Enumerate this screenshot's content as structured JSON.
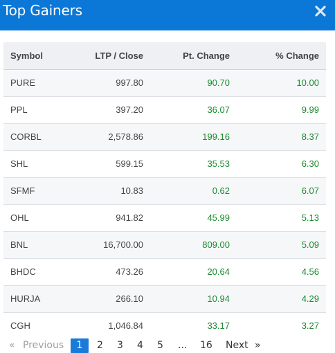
{
  "header": {
    "title": "Top Gainers"
  },
  "table": {
    "columns": [
      "Symbol",
      "LTP / Close",
      "Pt. Change",
      "% Change"
    ],
    "rows": [
      {
        "symbol": "PURE",
        "ltp": "997.80",
        "pt": "90.70",
        "pct": "10.00"
      },
      {
        "symbol": "PPL",
        "ltp": "397.20",
        "pt": "36.07",
        "pct": "9.99"
      },
      {
        "symbol": "CORBL",
        "ltp": "2,578.86",
        "pt": "199.16",
        "pct": "8.37"
      },
      {
        "symbol": "SHL",
        "ltp": "599.15",
        "pt": "35.53",
        "pct": "6.30"
      },
      {
        "symbol": "SFMF",
        "ltp": "10.83",
        "pt": "0.62",
        "pct": "6.07"
      },
      {
        "symbol": "OHL",
        "ltp": "941.82",
        "pt": "45.99",
        "pct": "5.13"
      },
      {
        "symbol": "BNL",
        "ltp": "16,700.00",
        "pt": "809.00",
        "pct": "5.09"
      },
      {
        "symbol": "BHDC",
        "ltp": "473.26",
        "pt": "20.64",
        "pct": "4.56"
      },
      {
        "symbol": "HURJA",
        "ltp": "266.10",
        "pt": "10.94",
        "pct": "4.29"
      },
      {
        "symbol": "CGH",
        "ltp": "1,046.84",
        "pt": "33.17",
        "pct": "3.27"
      }
    ]
  },
  "pagination": {
    "first": "«",
    "previous": "Previous",
    "pages": [
      "1",
      "2",
      "3",
      "4",
      "5"
    ],
    "ellipsis": "...",
    "last_page": "16",
    "next": "Next",
    "last": "»",
    "active_page": "1"
  },
  "colors": {
    "header_bg": "#0b78d7",
    "gain": "#1a8a2e",
    "active_page": "#1a7ad8"
  },
  "icons": {
    "close": "close-icon"
  }
}
